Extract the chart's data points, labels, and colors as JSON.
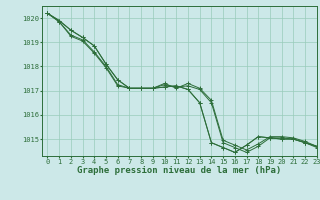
{
  "title": "Graphe pression niveau de la mer (hPa)",
  "bg_color": "#cce8e8",
  "grid_color": "#99ccbb",
  "line_color": "#2d6e3a",
  "xlim": [
    -0.5,
    23
  ],
  "ylim": [
    1014.3,
    1020.5
  ],
  "yticks": [
    1015,
    1016,
    1017,
    1018,
    1019,
    1020
  ],
  "xticks": [
    0,
    1,
    2,
    3,
    4,
    5,
    6,
    7,
    8,
    9,
    10,
    11,
    12,
    13,
    14,
    15,
    16,
    17,
    18,
    19,
    20,
    21,
    22,
    23
  ],
  "series1": [
    1020.2,
    1019.9,
    1019.5,
    1019.2,
    1018.85,
    1018.1,
    1017.45,
    1017.1,
    1017.1,
    1017.1,
    1017.15,
    1017.2,
    1017.05,
    1016.5,
    1014.85,
    1014.65,
    1014.45,
    1014.75,
    1015.1,
    1015.05,
    1015.0,
    1015.0,
    1014.85,
    1014.7
  ],
  "series2": [
    1020.2,
    1019.9,
    1019.5,
    1019.2,
    1018.85,
    1018.1,
    1017.45,
    1017.1,
    1017.1,
    1017.1,
    1017.15,
    1017.2,
    1017.05,
    1016.5,
    1014.85,
    1014.65,
    1014.45,
    1014.75,
    1015.1,
    1015.05,
    1015.0,
    1015.0,
    1014.85,
    1014.7
  ],
  "series3": [
    1020.2,
    1019.85,
    1019.3,
    1019.1,
    1018.6,
    1018.0,
    1017.25,
    1017.1,
    1017.1,
    1017.1,
    1017.25,
    1017.15,
    1017.2,
    1017.05,
    1016.5,
    1014.85,
    1014.65,
    1014.45,
    1014.7,
    1015.05,
    1015.05,
    1015.0,
    1014.85,
    1014.65
  ],
  "series4": [
    1020.2,
    1019.85,
    1019.25,
    1019.05,
    1018.55,
    1017.95,
    1017.2,
    1017.1,
    1017.1,
    1017.1,
    1017.3,
    1017.1,
    1017.3,
    1017.1,
    1016.6,
    1014.95,
    1014.75,
    1014.55,
    1014.8,
    1015.1,
    1015.1,
    1015.05,
    1014.9,
    1014.7
  ],
  "marker_size": 2.5,
  "linewidth": 0.7,
  "title_fontsize": 6.5,
  "tick_fontsize": 5.0
}
